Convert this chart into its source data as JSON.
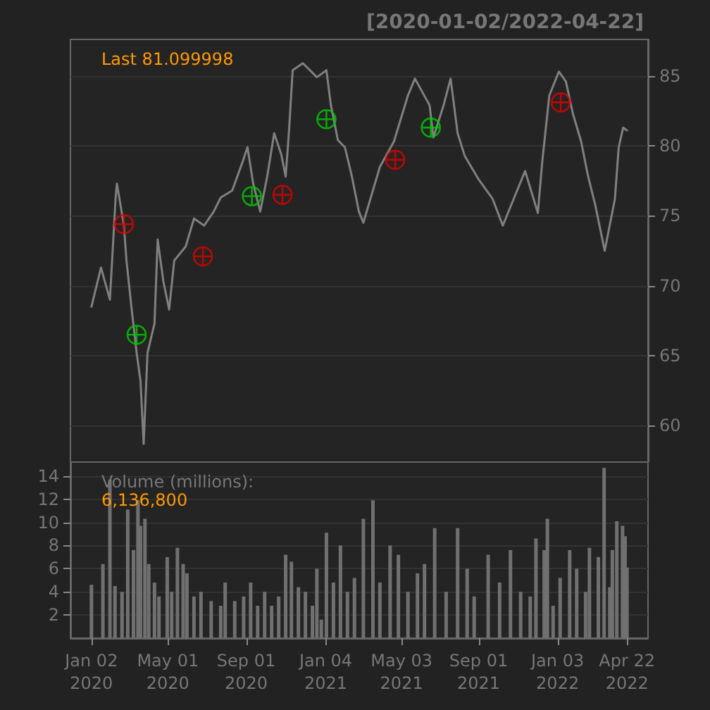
{
  "chart_data": [
    {
      "type": "line",
      "title": "[2020-01-02/2022-04-22]",
      "annotations": [
        "Last 81.099998"
      ],
      "xlim": [
        "2019-11-30",
        "2022-05-25"
      ],
      "ylim": [
        57.4,
        87.6
      ],
      "yticks": [
        60,
        65,
        70,
        75,
        80,
        85
      ],
      "tick_labels": "y",
      "grid": "y",
      "series": [
        {
          "color": "#808080",
          "x": [
            "2020-01-02",
            "2020-01-17",
            "2020-01-31",
            "2020-02-09",
            "2020-02-11",
            "2020-02-22",
            "2020-02-26",
            "2020-03-04",
            "2020-03-13",
            "2020-03-19",
            "2020-03-24",
            "2020-03-30",
            "2020-04-10",
            "2020-04-15",
            "2020-04-24",
            "2020-05-03",
            "2020-05-11",
            "2020-05-29",
            "2020-06-11",
            "2020-06-27",
            "2020-07-12",
            "2020-07-23",
            "2020-08-10",
            "2020-08-26",
            "2020-09-03",
            "2020-09-12",
            "2020-09-23",
            "2020-10-04",
            "2020-10-15",
            "2020-10-26",
            "2020-11-02",
            "2020-11-07",
            "2020-11-13",
            "2020-11-29",
            "2020-12-21",
            "2021-01-05",
            "2021-01-12",
            "2021-01-23",
            "2021-02-03",
            "2021-02-14",
            "2021-02-25",
            "2021-03-04",
            "2021-03-15",
            "2021-03-30",
            "2021-04-21",
            "2021-05-13",
            "2021-05-24",
            "2021-06-16",
            "2021-06-22",
            "2021-07-08",
            "2021-07-19",
            "2021-07-30",
            "2021-08-10",
            "2021-09-01",
            "2021-09-23",
            "2021-10-09",
            "2021-10-26",
            "2021-11-13",
            "2021-12-03",
            "2021-12-10",
            "2021-12-21",
            "2022-01-05",
            "2022-01-16",
            "2022-01-27",
            "2022-02-09",
            "2022-02-20",
            "2022-03-03",
            "2022-03-18",
            "2022-04-03",
            "2022-04-09",
            "2022-04-16",
            "2022-04-22"
          ],
          "values": [
            68.5,
            71.3,
            69.0,
            76.3,
            77.3,
            74.3,
            71.8,
            68.8,
            65.2,
            63.2,
            58.7,
            65.2,
            67.3,
            73.3,
            70.3,
            68.3,
            71.8,
            72.8,
            74.8,
            74.3,
            75.3,
            76.3,
            76.8,
            78.8,
            79.9,
            77.3,
            75.3,
            77.8,
            80.9,
            79.4,
            77.8,
            80.9,
            85.4,
            85.9,
            84.9,
            85.4,
            82.9,
            80.4,
            79.9,
            77.8,
            75.3,
            74.5,
            76.2,
            78.5,
            80.3,
            83.6,
            84.8,
            82.9,
            80.6,
            82.9,
            84.8,
            80.9,
            79.3,
            77.6,
            76.2,
            74.3,
            76.2,
            78.2,
            75.2,
            78.9,
            83.6,
            85.3,
            84.6,
            82.3,
            80.3,
            77.8,
            75.8,
            72.5,
            76.2,
            79.9,
            81.3,
            81.1
          ]
        },
        {
          "type": "scatter",
          "color": "#00cc00",
          "marker": "cross",
          "x": [
            "2020-03-13",
            "2020-09-10",
            "2021-01-05",
            "2021-06-18"
          ],
          "values": [
            66.5,
            76.4,
            81.9,
            81.3
          ]
        },
        {
          "type": "scatter",
          "color": "#dd0000",
          "marker": "cross",
          "x": [
            "2020-02-22",
            "2020-06-25",
            "2020-10-28",
            "2021-04-23",
            "2022-01-08"
          ],
          "values": [
            74.4,
            72.1,
            76.5,
            79.0,
            83.1
          ]
        }
      ]
    },
    {
      "type": "bar",
      "annotations": [
        "Volume (millions):",
        "6,136,800"
      ],
      "xlim": [
        "2019-11-30",
        "2022-05-25"
      ],
      "ylim": [
        0,
        15.2
      ],
      "yticks": [
        2,
        4,
        6,
        8,
        10,
        12,
        14
      ],
      "grid": "y",
      "xticks": [
        {
          "value": "2020-01-02",
          "label": "Jan 02\n2020"
        },
        {
          "value": "2020-05-01",
          "label": "May 01\n2020"
        },
        {
          "value": "2020-09-01",
          "label": "Sep 01\n2020"
        },
        {
          "value": "2021-01-04",
          "label": "Jan 04\n2021"
        },
        {
          "value": "2021-05-03",
          "label": "May 03\n2021"
        },
        {
          "value": "2021-09-01",
          "label": "Sep 01\n2021"
        },
        {
          "value": "2022-01-03",
          "label": "Jan 03\n2022"
        },
        {
          "value": "2022-04-22",
          "label": "Apr 22\n2022"
        }
      ],
      "series": [
        {
          "color": "#707070",
          "x": [
            "2020-01-02",
            "2020-01-20",
            "2020-01-31",
            "2020-02-08",
            "2020-02-19",
            "2020-02-28",
            "2020-03-08",
            "2020-03-15",
            "2020-03-19",
            "2020-03-26",
            "2020-04-01",
            "2020-04-10",
            "2020-04-17",
            "2020-04-30",
            "2020-05-07",
            "2020-05-16",
            "2020-05-25",
            "2020-05-31",
            "2020-06-11",
            "2020-06-22",
            "2020-07-08",
            "2020-07-23",
            "2020-07-30",
            "2020-08-14",
            "2020-08-28",
            "2020-09-08",
            "2020-09-19",
            "2020-09-30",
            "2020-10-11",
            "2020-10-22",
            "2020-11-02",
            "2020-11-11",
            "2020-11-22",
            "2020-12-03",
            "2020-12-14",
            "2020-12-21",
            "2020-12-28",
            "2021-01-05",
            "2021-01-16",
            "2021-01-27",
            "2021-02-07",
            "2021-02-18",
            "2021-03-04",
            "2021-03-19",
            "2021-03-30",
            "2021-04-15",
            "2021-04-28",
            "2021-05-13",
            "2021-05-28",
            "2021-06-08",
            "2021-06-24",
            "2021-07-12",
            "2021-07-30",
            "2021-08-14",
            "2021-08-25",
            "2021-09-16",
            "2021-10-04",
            "2021-10-21",
            "2021-11-06",
            "2021-11-21",
            "2021-11-30",
            "2021-12-13",
            "2021-12-18",
            "2021-12-27",
            "2022-01-07",
            "2022-01-22",
            "2022-02-02",
            "2022-02-16",
            "2022-02-22",
            "2022-03-08",
            "2022-03-17",
            "2022-03-26",
            "2022-03-30",
            "2022-04-06",
            "2022-04-15",
            "2022-04-19",
            "2022-04-22"
          ],
          "values": [
            4.6,
            6.4,
            13.7,
            4.5,
            4.0,
            11.1,
            7.6,
            11.9,
            9.7,
            10.3,
            6.4,
            4.8,
            3.6,
            7.0,
            4.0,
            7.8,
            6.4,
            5.6,
            3.6,
            4.0,
            3.2,
            2.8,
            4.8,
            3.2,
            3.6,
            4.8,
            2.8,
            4.0,
            2.8,
            3.6,
            7.2,
            6.6,
            4.4,
            4.0,
            2.8,
            6.0,
            1.6,
            9.1,
            4.8,
            8.0,
            4.0,
            5.2,
            10.3,
            11.9,
            4.8,
            8.0,
            7.2,
            4.0,
            5.6,
            6.4,
            9.5,
            4.0,
            9.5,
            6.0,
            3.6,
            7.2,
            4.8,
            7.6,
            4.0,
            3.6,
            8.6,
            7.6,
            10.3,
            2.8,
            5.2,
            7.6,
            6.0,
            4.0,
            7.8,
            7.0,
            14.7,
            4.4,
            7.6,
            10.1,
            9.7,
            8.8,
            6.1
          ]
        }
      ]
    }
  ]
}
